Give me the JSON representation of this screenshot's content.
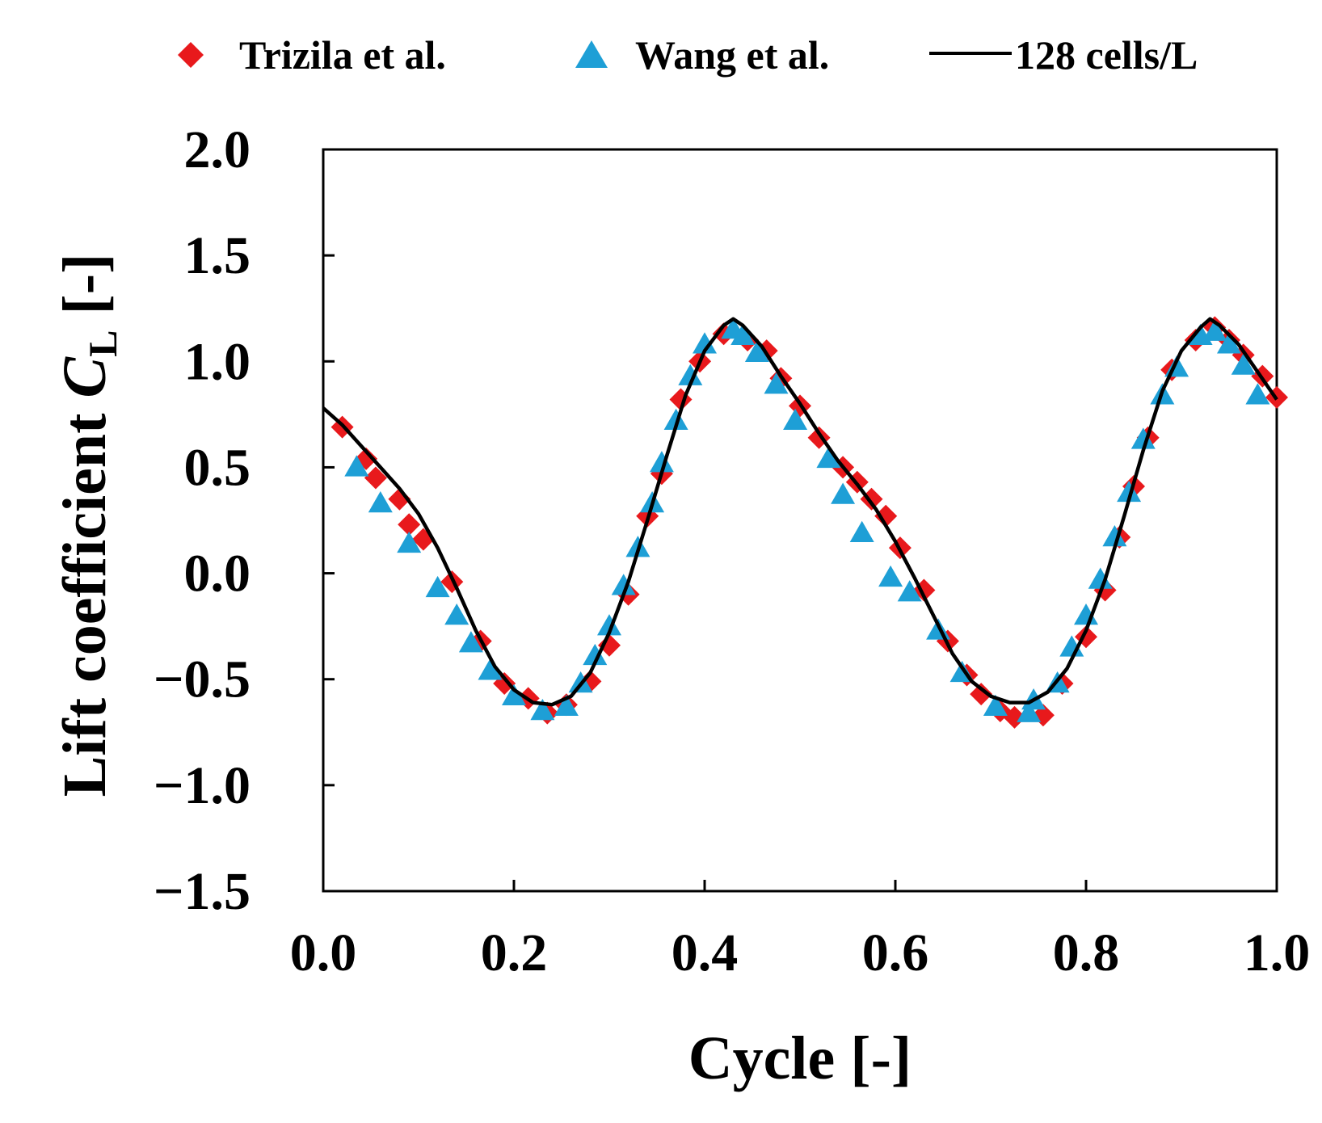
{
  "chart_data": {
    "type": "line+scatter",
    "xlabel": "Cycle [-]",
    "ylabel": {
      "prefix": "Lift coefficient ",
      "symbol": "C",
      "subscript": "L",
      "suffix": " [-]"
    },
    "xlim": [
      0.0,
      1.0
    ],
    "ylim": [
      -1.5,
      2.0
    ],
    "xticks": [
      0.0,
      0.2,
      0.4,
      0.6,
      0.8,
      1.0
    ],
    "xtick_labels": [
      "0.0",
      "0.2",
      "0.4",
      "0.6",
      "0.8",
      "1.0"
    ],
    "yticks": [
      -1.5,
      -1.0,
      -0.5,
      0.0,
      0.5,
      1.0,
      1.5,
      2.0
    ],
    "ytick_labels": [
      "−1.5",
      "−1.0",
      "−0.5",
      "0.0",
      "0.5",
      "1.0",
      "1.5",
      "2.0"
    ],
    "legend": {
      "position": "top",
      "entries": [
        "Trizila et al.",
        "Wang et al.",
        "128 cells/L"
      ]
    },
    "series": [
      {
        "name": "Trizila et al.",
        "marker": "diamond",
        "color": "#e8191c",
        "points": [
          [
            0.02,
            0.69
          ],
          [
            0.045,
            0.54
          ],
          [
            0.055,
            0.45
          ],
          [
            0.08,
            0.35
          ],
          [
            0.09,
            0.23
          ],
          [
            0.105,
            0.16
          ],
          [
            0.135,
            -0.04
          ],
          [
            0.165,
            -0.32
          ],
          [
            0.19,
            -0.52
          ],
          [
            0.215,
            -0.59
          ],
          [
            0.235,
            -0.66
          ],
          [
            0.255,
            -0.62
          ],
          [
            0.28,
            -0.51
          ],
          [
            0.3,
            -0.34
          ],
          [
            0.32,
            -0.1
          ],
          [
            0.34,
            0.27
          ],
          [
            0.355,
            0.47
          ],
          [
            0.375,
            0.82
          ],
          [
            0.395,
            1.0
          ],
          [
            0.42,
            1.13
          ],
          [
            0.445,
            1.1
          ],
          [
            0.465,
            1.05
          ],
          [
            0.48,
            0.92
          ],
          [
            0.5,
            0.79
          ],
          [
            0.52,
            0.64
          ],
          [
            0.545,
            0.5
          ],
          [
            0.56,
            0.43
          ],
          [
            0.575,
            0.35
          ],
          [
            0.59,
            0.27
          ],
          [
            0.605,
            0.12
          ],
          [
            0.63,
            -0.08
          ],
          [
            0.655,
            -0.32
          ],
          [
            0.675,
            -0.48
          ],
          [
            0.69,
            -0.57
          ],
          [
            0.71,
            -0.65
          ],
          [
            0.725,
            -0.68
          ],
          [
            0.755,
            -0.67
          ],
          [
            0.775,
            -0.52
          ],
          [
            0.8,
            -0.3
          ],
          [
            0.82,
            -0.08
          ],
          [
            0.835,
            0.17
          ],
          [
            0.85,
            0.41
          ],
          [
            0.865,
            0.64
          ],
          [
            0.89,
            0.96
          ],
          [
            0.915,
            1.1
          ],
          [
            0.935,
            1.16
          ],
          [
            0.95,
            1.1
          ],
          [
            0.965,
            1.03
          ],
          [
            0.985,
            0.93
          ],
          [
            1.0,
            0.83
          ]
        ]
      },
      {
        "name": "Wang et al.",
        "marker": "triangle",
        "color": "#1e9fd6",
        "points": [
          [
            0.035,
            0.5
          ],
          [
            0.06,
            0.33
          ],
          [
            0.09,
            0.14
          ],
          [
            0.12,
            -0.07
          ],
          [
            0.14,
            -0.2
          ],
          [
            0.155,
            -0.33
          ],
          [
            0.175,
            -0.46
          ],
          [
            0.2,
            -0.58
          ],
          [
            0.23,
            -0.65
          ],
          [
            0.255,
            -0.63
          ],
          [
            0.27,
            -0.52
          ],
          [
            0.285,
            -0.39
          ],
          [
            0.3,
            -0.25
          ],
          [
            0.315,
            -0.06
          ],
          [
            0.33,
            0.12
          ],
          [
            0.345,
            0.33
          ],
          [
            0.355,
            0.52
          ],
          [
            0.37,
            0.72
          ],
          [
            0.385,
            0.93
          ],
          [
            0.4,
            1.08
          ],
          [
            0.43,
            1.15
          ],
          [
            0.44,
            1.12
          ],
          [
            0.455,
            1.04
          ],
          [
            0.475,
            0.89
          ],
          [
            0.495,
            0.72
          ],
          [
            0.53,
            0.54
          ],
          [
            0.545,
            0.37
          ],
          [
            0.565,
            0.19
          ],
          [
            0.595,
            -0.02
          ],
          [
            0.615,
            -0.09
          ],
          [
            0.645,
            -0.27
          ],
          [
            0.67,
            -0.47
          ],
          [
            0.705,
            -0.63
          ],
          [
            0.74,
            -0.66
          ],
          [
            0.745,
            -0.6
          ],
          [
            0.77,
            -0.52
          ],
          [
            0.785,
            -0.35
          ],
          [
            0.8,
            -0.2
          ],
          [
            0.815,
            -0.03
          ],
          [
            0.83,
            0.17
          ],
          [
            0.845,
            0.38
          ],
          [
            0.86,
            0.63
          ],
          [
            0.88,
            0.84
          ],
          [
            0.895,
            0.97
          ],
          [
            0.92,
            1.12
          ],
          [
            0.935,
            1.14
          ],
          [
            0.95,
            1.08
          ],
          [
            0.965,
            0.98
          ],
          [
            0.98,
            0.84
          ]
        ]
      },
      {
        "name": "128 cells/L",
        "type": "line",
        "color": "#000000",
        "points": [
          [
            0.0,
            0.78
          ],
          [
            0.02,
            0.7
          ],
          [
            0.04,
            0.6
          ],
          [
            0.06,
            0.5
          ],
          [
            0.08,
            0.4
          ],
          [
            0.1,
            0.28
          ],
          [
            0.12,
            0.12
          ],
          [
            0.14,
            -0.07
          ],
          [
            0.16,
            -0.27
          ],
          [
            0.18,
            -0.44
          ],
          [
            0.2,
            -0.55
          ],
          [
            0.22,
            -0.61
          ],
          [
            0.24,
            -0.62
          ],
          [
            0.26,
            -0.58
          ],
          [
            0.28,
            -0.47
          ],
          [
            0.3,
            -0.28
          ],
          [
            0.32,
            -0.04
          ],
          [
            0.34,
            0.25
          ],
          [
            0.36,
            0.55
          ],
          [
            0.38,
            0.84
          ],
          [
            0.4,
            1.05
          ],
          [
            0.42,
            1.17
          ],
          [
            0.43,
            1.2
          ],
          [
            0.44,
            1.17
          ],
          [
            0.46,
            1.07
          ],
          [
            0.48,
            0.93
          ],
          [
            0.5,
            0.8
          ],
          [
            0.52,
            0.66
          ],
          [
            0.54,
            0.53
          ],
          [
            0.56,
            0.42
          ],
          [
            0.58,
            0.3
          ],
          [
            0.6,
            0.15
          ],
          [
            0.62,
            -0.02
          ],
          [
            0.64,
            -0.2
          ],
          [
            0.66,
            -0.38
          ],
          [
            0.68,
            -0.51
          ],
          [
            0.7,
            -0.58
          ],
          [
            0.72,
            -0.61
          ],
          [
            0.74,
            -0.61
          ],
          [
            0.76,
            -0.56
          ],
          [
            0.78,
            -0.45
          ],
          [
            0.8,
            -0.27
          ],
          [
            0.82,
            -0.03
          ],
          [
            0.84,
            0.27
          ],
          [
            0.86,
            0.58
          ],
          [
            0.88,
            0.86
          ],
          [
            0.9,
            1.05
          ],
          [
            0.92,
            1.16
          ],
          [
            0.93,
            1.2
          ],
          [
            0.94,
            1.17
          ],
          [
            0.96,
            1.08
          ],
          [
            0.98,
            0.95
          ],
          [
            1.0,
            0.82
          ]
        ]
      }
    ]
  }
}
